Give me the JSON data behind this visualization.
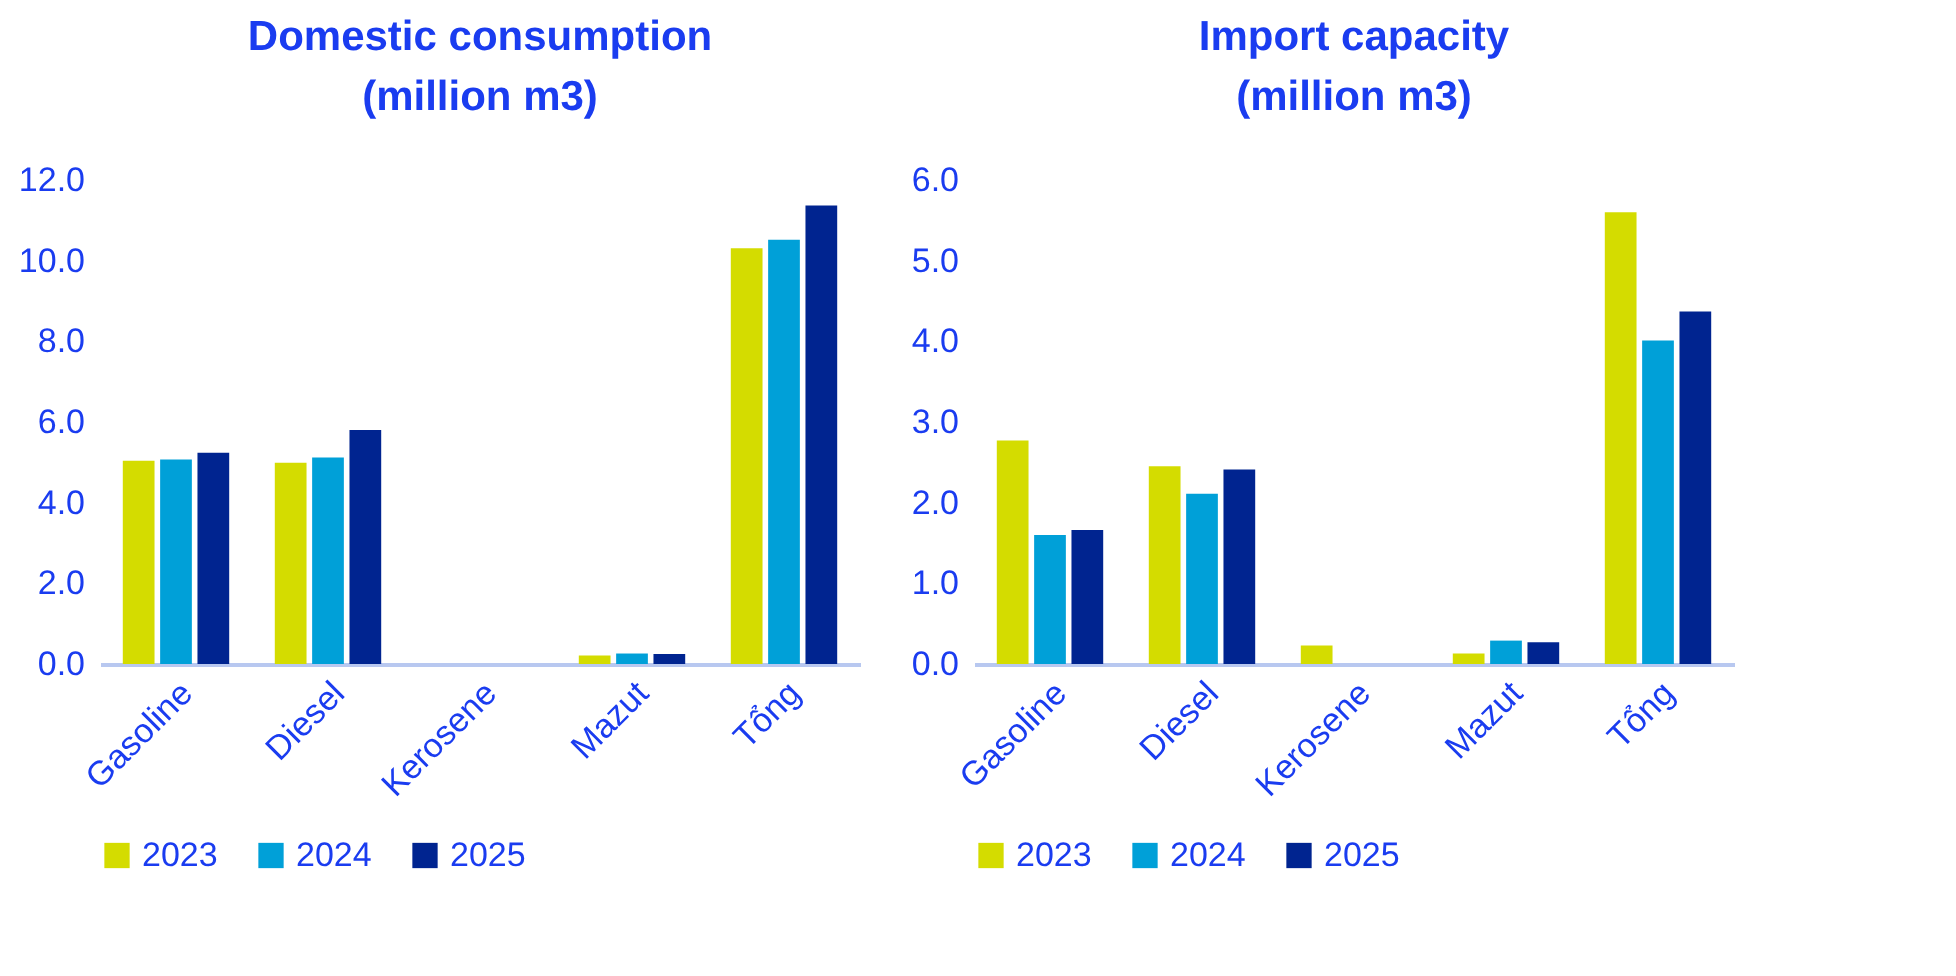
{
  "chart_data": [
    {
      "type": "bar",
      "title": "Domestic consumption\n(million m3)",
      "categories": [
        "Gasoline",
        "Diesel",
        "Kerosene",
        "Mazut",
        "Tổng"
      ],
      "ylim": [
        0,
        12
      ],
      "yticks": [
        {
          "value": 0,
          "label": "0.0"
        },
        {
          "value": 2,
          "label": "2.0"
        },
        {
          "value": 4,
          "label": "4.0"
        },
        {
          "value": 6,
          "label": "6.0"
        },
        {
          "value": 8,
          "label": "8.0"
        },
        {
          "value": 10,
          "label": "10.0"
        },
        {
          "value": 12,
          "label": "12.0"
        }
      ],
      "grid": false,
      "legend": "bottom",
      "series": [
        {
          "name": "2023",
          "color": "#d4dc00",
          "values": [
            5.04,
            4.99,
            0,
            0.21,
            10.31
          ]
        },
        {
          "name": "2024",
          "color": "#00a0d8",
          "values": [
            5.07,
            5.12,
            0,
            0.26,
            10.52
          ]
        },
        {
          "name": "2025",
          "color": "#002490",
          "values": [
            5.24,
            5.8,
            0,
            0.25,
            11.37
          ]
        }
      ]
    },
    {
      "type": "bar",
      "title": "Import capacity\n(million m3)",
      "categories": [
        "Gasoline",
        "Diesel",
        "Kerosene",
        "Mazut",
        "Tổng"
      ],
      "ylim": [
        0,
        6
      ],
      "yticks": [
        {
          "value": 0,
          "label": "0.0"
        },
        {
          "value": 1,
          "label": "1.0"
        },
        {
          "value": 2,
          "label": "2.0"
        },
        {
          "value": 3,
          "label": "3.0"
        },
        {
          "value": 4,
          "label": "4.0"
        },
        {
          "value": 5,
          "label": "5.0"
        },
        {
          "value": 6,
          "label": "6.0"
        }
      ],
      "grid": false,
      "legend": "bottom",
      "series": [
        {
          "name": "2023",
          "color": "#d4dc00",
          "values": [
            2.77,
            2.45,
            0.23,
            0.13,
            5.6
          ]
        },
        {
          "name": "2024",
          "color": "#00a0d8",
          "values": [
            1.6,
            2.11,
            0,
            0.29,
            4.01
          ]
        },
        {
          "name": "2025",
          "color": "#002490",
          "values": [
            1.66,
            2.41,
            0,
            0.27,
            4.37
          ]
        }
      ]
    }
  ]
}
